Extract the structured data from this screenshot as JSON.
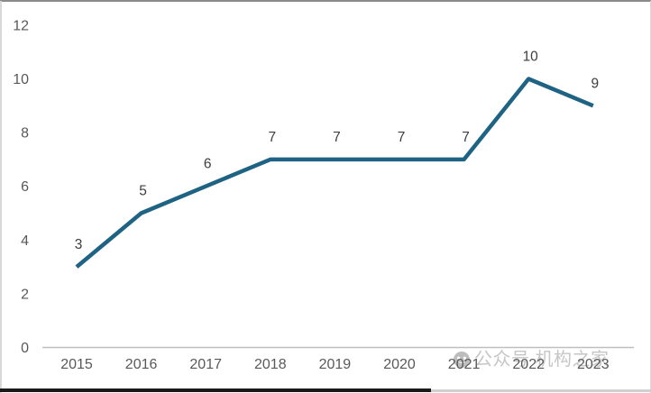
{
  "chart_data": {
    "type": "line",
    "title": "",
    "xlabel": "",
    "ylabel": "",
    "categories": [
      "2015",
      "2016",
      "2017",
      "2018",
      "2019",
      "2020",
      "2021",
      "2022",
      "2023"
    ],
    "values": [
      3,
      5,
      6,
      7,
      7,
      7,
      7,
      10,
      9
    ],
    "data_labels": [
      "3",
      "5",
      "6",
      "7",
      "7",
      "7",
      "7",
      "10",
      "9"
    ],
    "ylim": [
      0,
      12
    ],
    "yticks": [
      0,
      2,
      4,
      6,
      8,
      10,
      12
    ],
    "grid": false,
    "legend_position": "none",
    "line_color": "#1f6384",
    "data_label_color": "#3d3d3d",
    "axis_label_color": "#595959",
    "axis_line_color": "#bfbfbf"
  },
  "watermark": {
    "icon": "wechat-official-account-icon",
    "text": "公众号 机构之家",
    "color": "#c6c6c6",
    "logo_color": "#bdbdbd"
  },
  "frame": {
    "top_border_color": "#8a8a8a",
    "side_border_color": "#d8d8d8",
    "bottom_bar_dark_color": "#1a1a1a",
    "bottom_bar_light_color": "#d0d0d0"
  }
}
